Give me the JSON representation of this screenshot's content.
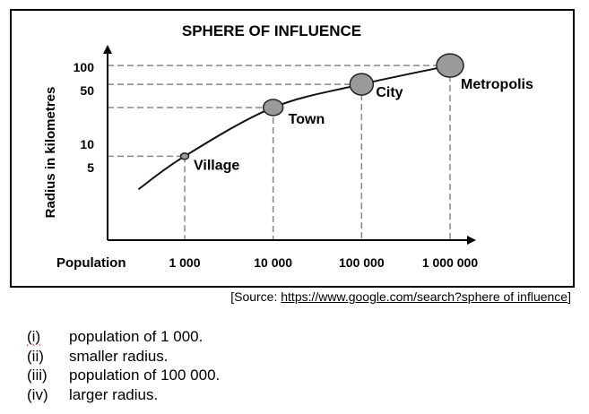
{
  "chart_data": {
    "type": "line",
    "title": "SPHERE OF INFLUENCE",
    "xlabel": "Population",
    "ylabel": "Radius in kilometres",
    "x_scale": "log",
    "y_scale": "log",
    "x_ticks": [
      {
        "value": 1000,
        "label": "1 000"
      },
      {
        "value": 10000,
        "label": "10 000"
      },
      {
        "value": 100000,
        "label": "100 000"
      },
      {
        "value": 1000000,
        "label": "1 000 000"
      }
    ],
    "y_ticks": [
      {
        "value": 5,
        "label": "5"
      },
      {
        "value": 10,
        "label": "10"
      },
      {
        "value": 50,
        "label": "50"
      },
      {
        "value": 100,
        "label": "100"
      }
    ],
    "xlim": [
      200,
      3000000
    ],
    "ylim": [
      2.2,
      160
    ],
    "curve_start": {
      "x": 300,
      "y": 2.6
    },
    "points": [
      {
        "name": "Village",
        "x": 1000,
        "y": 7,
        "size": "small"
      },
      {
        "name": "Town",
        "x": 10000,
        "y": 30,
        "size": "medium"
      },
      {
        "name": "City",
        "x": 100000,
        "y": 60,
        "size": "large"
      },
      {
        "name": "Metropolis",
        "x": 1000000,
        "y": 105,
        "size": "xlarge"
      }
    ]
  },
  "source": {
    "prefix": "[Source: ",
    "link": "https://www.google.com/search?sphere of influence",
    "suffix": "]"
  },
  "options": [
    {
      "num": "(i)",
      "text": "population of 1 000."
    },
    {
      "num": "(ii)",
      "text": "smaller radius."
    },
    {
      "num": "(iii)",
      "text": "population of 100 000."
    },
    {
      "num": "(iv)",
      "text": "larger radius."
    }
  ]
}
